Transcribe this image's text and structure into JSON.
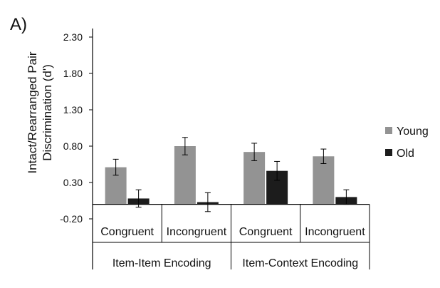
{
  "panel_label": "A)",
  "chart_data": {
    "type": "bar",
    "title": "",
    "ylabel_lines": [
      "Intact/Rearranged Pair",
      "Discrimination (d')"
    ],
    "xlabel": "",
    "ylim": [
      -0.2,
      2.3
    ],
    "yticks": [
      "2.30",
      "1.80",
      "1.30",
      "0.80",
      "0.30",
      "-0.20"
    ],
    "ytick_values": [
      2.3,
      1.8,
      1.3,
      0.8,
      0.3,
      -0.2
    ],
    "groups": [
      "Item-Item Encoding",
      "Item-Context Encoding"
    ],
    "categories": [
      "Congruent",
      "Incongruent",
      "Congruent",
      "Incongruent"
    ],
    "category_group_index": [
      0,
      0,
      1,
      1
    ],
    "series": [
      {
        "name": "Young",
        "color": "#939393",
        "values": [
          0.51,
          0.8,
          0.72,
          0.66
        ],
        "errors": [
          0.11,
          0.12,
          0.12,
          0.1
        ]
      },
      {
        "name": "Old",
        "color": "#1c1c1c",
        "values": [
          0.08,
          0.03,
          0.46,
          0.1
        ],
        "errors": [
          0.12,
          0.13,
          0.13,
          0.1
        ]
      }
    ],
    "legend_position": "right",
    "grid": false
  }
}
